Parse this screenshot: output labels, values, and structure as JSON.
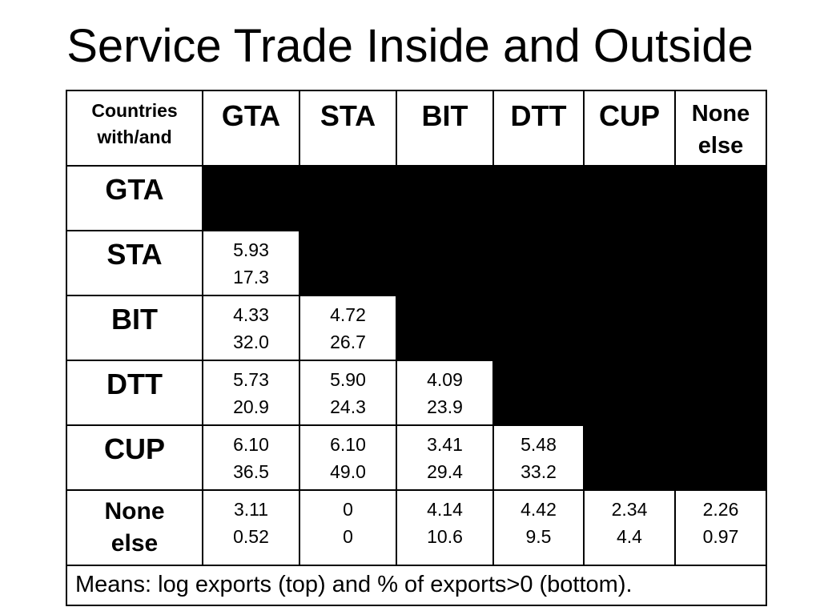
{
  "title": "Service Trade Inside and Outside",
  "table": {
    "corner": "Countries\nwith/and",
    "columns": [
      "GTA",
      "STA",
      "BIT",
      "DTT",
      "CUP",
      "None\nelse"
    ],
    "rows": [
      {
        "label": "GTA",
        "cells": []
      },
      {
        "label": "STA",
        "cells": [
          {
            "top": "5.93",
            "bottom": "17.3"
          }
        ]
      },
      {
        "label": "BIT",
        "cells": [
          {
            "top": "4.33",
            "bottom": "32.0"
          },
          {
            "top": "4.72",
            "bottom": "26.7"
          }
        ]
      },
      {
        "label": "DTT",
        "cells": [
          {
            "top": "5.73",
            "bottom": "20.9"
          },
          {
            "top": "5.90",
            "bottom": "24.3"
          },
          {
            "top": "4.09",
            "bottom": "23.9"
          }
        ]
      },
      {
        "label": "CUP",
        "cells": [
          {
            "top": "6.10",
            "bottom": "36.5"
          },
          {
            "top": "6.10",
            "bottom": "49.0"
          },
          {
            "top": "3.41",
            "bottom": "29.4"
          },
          {
            "top": "5.48",
            "bottom": "33.2"
          }
        ]
      },
      {
        "label": "None\nelse",
        "cells": [
          {
            "top": "3.11",
            "bottom": "0.52"
          },
          {
            "top": "0",
            "bottom": "0"
          },
          {
            "top": "4.14",
            "bottom": "10.6"
          },
          {
            "top": "4.42",
            "bottom": "9.5"
          },
          {
            "top": "2.34",
            "bottom": "4.4"
          },
          {
            "top": "2.26",
            "bottom": "0.97"
          }
        ]
      }
    ],
    "footnote": "Means: log exports (top) and % of exports>0 (bottom).",
    "blank_cell_color": "#000000"
  }
}
